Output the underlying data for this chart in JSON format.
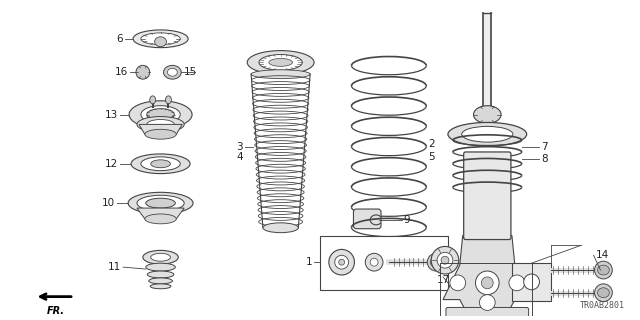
{
  "background_color": "#ffffff",
  "line_color": "#444444",
  "label_color": "#222222",
  "diagram_code": "TR0AB2801",
  "figsize": [
    6.4,
    3.2
  ],
  "dpi": 100
}
